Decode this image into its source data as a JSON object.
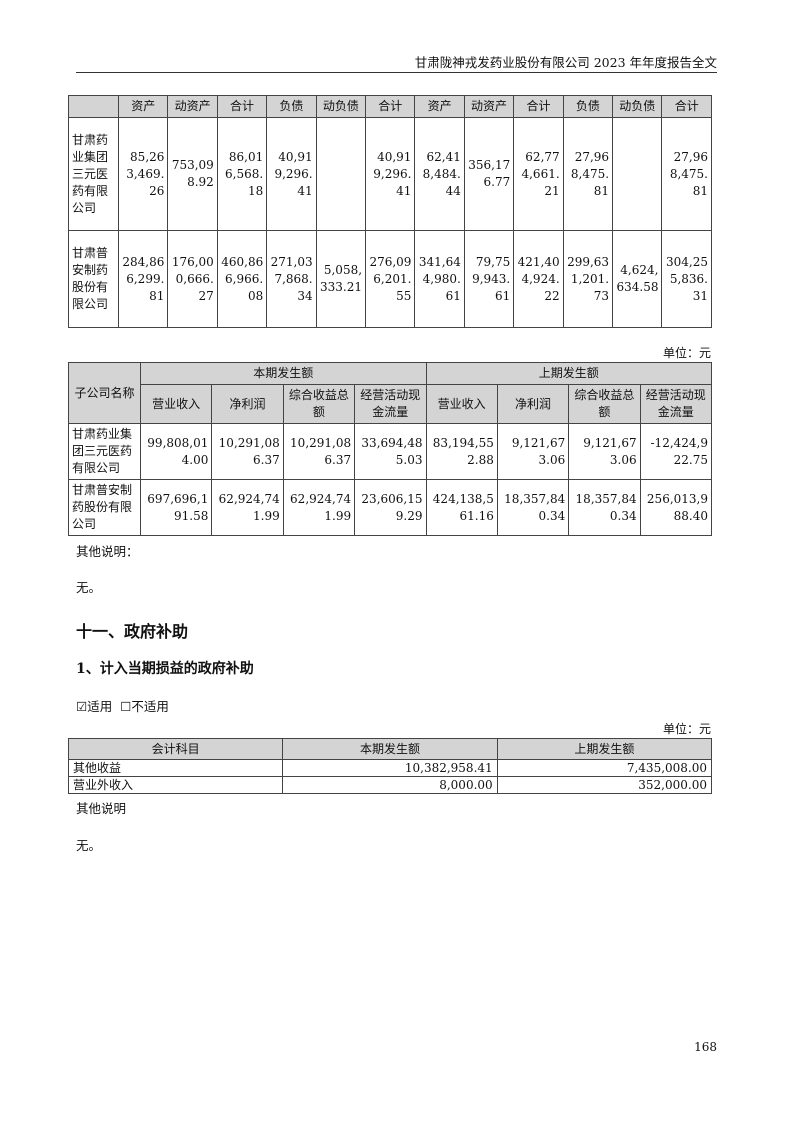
{
  "header": {
    "title": "甘肃陇神戎发药业股份有限公司 2023 年年度报告全文"
  },
  "table1": {
    "headers": [
      "",
      "资产",
      "动资产",
      "合计",
      "负债",
      "动负债",
      "合计",
      "资产",
      "动资产",
      "合计",
      "负债",
      "动负债",
      "合计"
    ],
    "rows": [
      [
        "甘肃药业集团三元医药有限公司",
        "85,263,469.26",
        "753,098.92",
        "86,016,568.18",
        "40,919,296.41",
        "",
        "40,919,296.41",
        "62,418,484.44",
        "356,176.77",
        "62,774,661.21",
        "27,968,475.81",
        "",
        "27,968,475.81"
      ],
      [
        "甘肃普安制药股份有限公司",
        "284,866,299.81",
        "176,000,666.27",
        "460,866,966.08",
        "271,037,868.34",
        "5,058,333.21",
        "276,096,201.55",
        "341,644,980.61",
        "79,759,943.61",
        "421,404,924.22",
        "299,631,201.73",
        "4,624,634.58",
        "304,255,836.31"
      ]
    ]
  },
  "unit1": "单位：元",
  "table2": {
    "name_header": "子公司名称",
    "group_headers": [
      "本期发生额",
      "上期发生额"
    ],
    "sub_headers": [
      "营业收入",
      "净利润",
      "综合收益总额",
      "经营活动现金流量",
      "营业收入",
      "净利润",
      "综合收益总额",
      "经营活动现金流量"
    ],
    "rows": [
      [
        "甘肃药业集团三元医药有限公司",
        "99,808,014.00",
        "10,291,086.37",
        "10,291,086.37",
        "33,694,485.03",
        "83,194,552.88",
        "9,121,673.06",
        "9,121,673.06",
        "-12,424,922.75"
      ],
      [
        "甘肃普安制药股份有限公司",
        "697,696,191.58",
        "62,924,741.99",
        "62,924,741.99",
        "23,606,159.29",
        "424,138,561.16",
        "18,357,840.34",
        "18,357,840.34",
        "256,013,988.40"
      ]
    ]
  },
  "other1_label": "其他说明：",
  "other1_value": "无。",
  "section_title": "十一、政府补助",
  "subsection_title": "1、计入当期损益的政府补助",
  "applicable": {
    "checked": "☑适用",
    "unchecked": "☐不适用"
  },
  "unit2": "单位：元",
  "table3": {
    "headers": [
      "会计科目",
      "本期发生额",
      "上期发生额"
    ],
    "rows": [
      [
        "其他收益",
        "10,382,958.41",
        "7,435,008.00"
      ],
      [
        "营业外收入",
        "8,000.00",
        "352,000.00"
      ]
    ]
  },
  "other2_label": "其他说明",
  "other2_value": "无。",
  "page_number": "168"
}
